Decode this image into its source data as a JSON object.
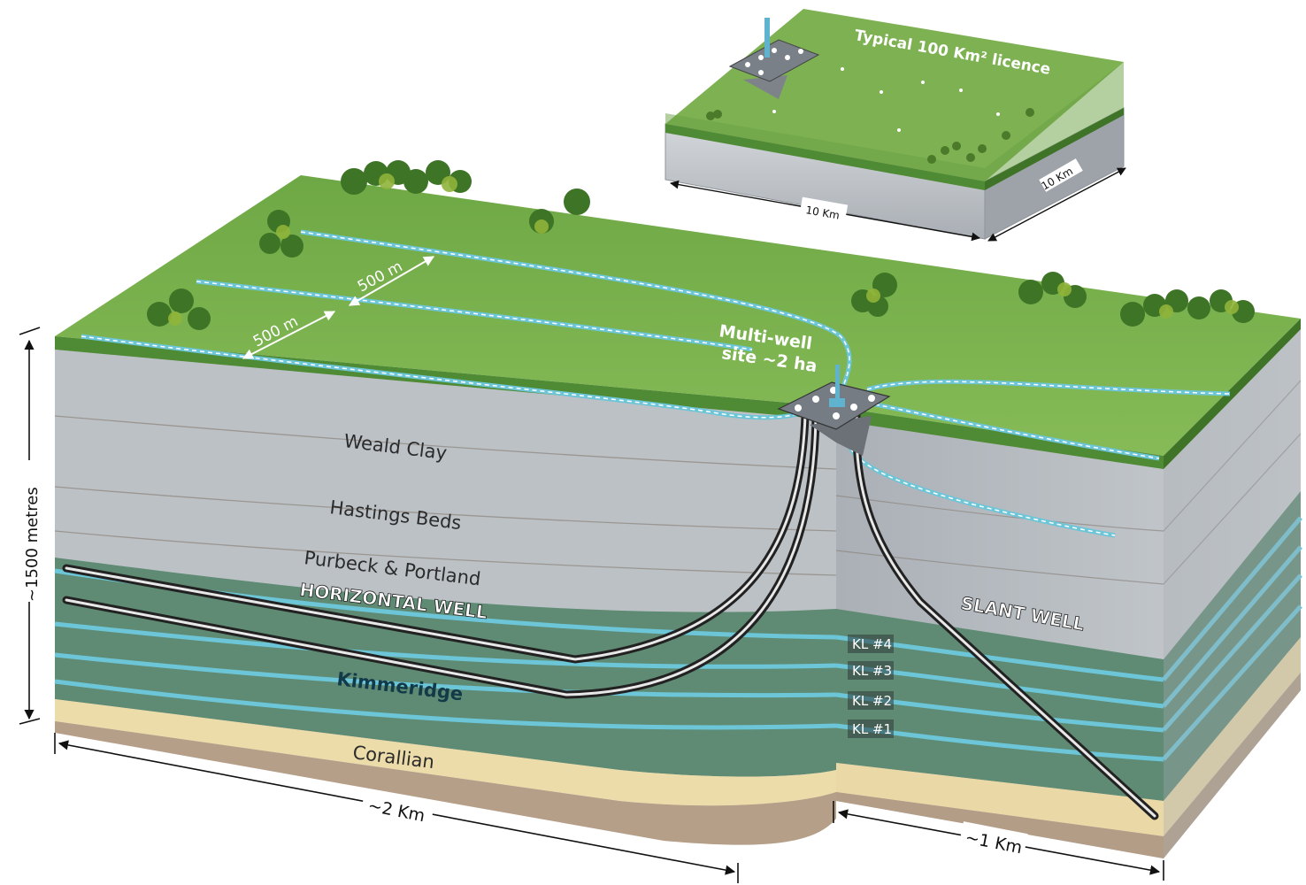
{
  "licence": {
    "title": "Typical 100 Km² licence",
    "width_label": "10 Km",
    "depth_label": "10 Km"
  },
  "site": {
    "line1": "Multi-well",
    "line2": "site ~2 ha"
  },
  "spacing": {
    "a": "500 m",
    "b": "500 m"
  },
  "layers": {
    "weald": "Weald Clay",
    "hastings": "Hastings Beds",
    "purbeck": "Purbeck & Portland",
    "kimmeridge": "Kimmeridge",
    "corallian": "Corallian"
  },
  "wells": {
    "horizontal": "HORIZONTAL WELL",
    "slant": "SLANT WELL"
  },
  "kl_labels": [
    "KL #4",
    "KL #3",
    "KL #2",
    "KL #1"
  ],
  "dimensions": {
    "depth": "~1500 metres",
    "length": "~2 Km",
    "width": "~1 Km"
  },
  "colors": {
    "grass": "#7cb04f",
    "grass_dark": "#4f8a34",
    "grey_rock": "#b9bec4",
    "green_rock": "#5e8a72",
    "seam": "#6cc6d8",
    "sand": "#ecdcaa",
    "base": "#b59f88"
  }
}
